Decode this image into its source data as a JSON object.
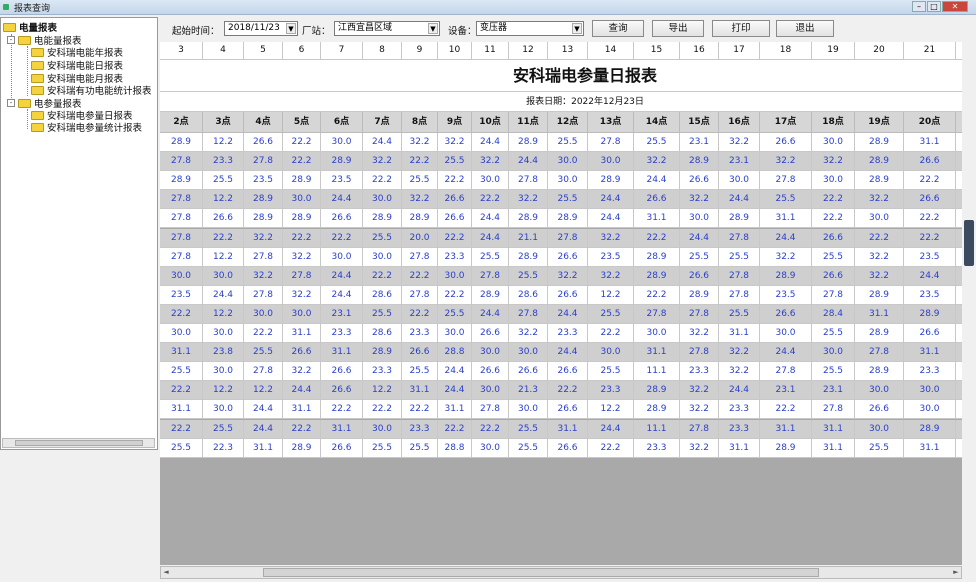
{
  "window": {
    "title": "报表查询"
  },
  "sidebar": {
    "root": "电量报表",
    "groups": [
      {
        "label": "电能量报表",
        "items": [
          "安科瑞电能年报表",
          "安科瑞电能日报表",
          "安科瑞电能月报表",
          "安科瑞有功电能统计报表"
        ]
      },
      {
        "label": "电参量报表",
        "items": [
          "安科瑞电参量日报表",
          "安科瑞电参量统计报表"
        ]
      }
    ]
  },
  "toolbar": {
    "start_time_label": "起始时间：",
    "start_time_value": "2018/11/23",
    "station_label": "厂站：",
    "station_value": "江西宜昌区域",
    "device_label": "设备：",
    "device_value": "变压器",
    "query": "查询",
    "export": "导出",
    "print": "打印",
    "exit": "退出"
  },
  "grid": {
    "column_numbers": [
      "3",
      "4",
      "5",
      "6",
      "7",
      "8",
      "9",
      "10",
      "11",
      "12",
      "13",
      "14",
      "15",
      "16",
      "17",
      "18",
      "19",
      "20",
      "21"
    ],
    "report_title": "安科瑞电参量日报表",
    "report_date": "报表日期：2022年12月23日",
    "hours": [
      "2点",
      "3点",
      "4点",
      "5点",
      "6点",
      "7点",
      "8点",
      "9点",
      "10点",
      "11点",
      "12点",
      "13点",
      "14点",
      "15点",
      "16点",
      "17点",
      "18点",
      "19点",
      "20点"
    ],
    "rows": [
      [
        "28.9",
        "12.2",
        "26.6",
        "22.2",
        "30.0",
        "24.4",
        "32.2",
        "32.2",
        "24.4",
        "28.9",
        "25.5",
        "27.8",
        "25.5",
        "23.1",
        "32.2",
        "26.6",
        "30.0",
        "28.9",
        "31.1"
      ],
      [
        "27.8",
        "23.3",
        "27.8",
        "22.2",
        "28.9",
        "32.2",
        "22.2",
        "25.5",
        "32.2",
        "24.4",
        "30.0",
        "30.0",
        "32.2",
        "28.9",
        "23.1",
        "32.2",
        "32.2",
        "28.9",
        "26.6"
      ],
      [
        "28.9",
        "25.5",
        "23.5",
        "28.9",
        "23.5",
        "22.2",
        "25.5",
        "22.2",
        "30.0",
        "27.8",
        "30.0",
        "28.9",
        "24.4",
        "26.6",
        "30.0",
        "27.8",
        "30.0",
        "28.9",
        "22.2"
      ],
      [
        "27.8",
        "12.2",
        "28.9",
        "30.0",
        "24.4",
        "30.0",
        "32.2",
        "26.6",
        "22.2",
        "32.2",
        "25.5",
        "24.4",
        "26.6",
        "32.2",
        "24.4",
        "25.5",
        "22.2",
        "32.2",
        "26.6"
      ],
      [
        "27.8",
        "26.6",
        "28.9",
        "28.9",
        "26.6",
        "28.9",
        "28.9",
        "26.6",
        "24.4",
        "28.9",
        "28.9",
        "24.4",
        "31.1",
        "30.0",
        "28.9",
        "31.1",
        "22.2",
        "30.0",
        "22.2"
      ],
      [
        "27.8",
        "22.2",
        "32.2",
        "22.2",
        "22.2",
        "25.5",
        "20.0",
        "22.2",
        "24.4",
        "21.1",
        "27.8",
        "32.2",
        "22.2",
        "24.4",
        "27.8",
        "24.4",
        "26.6",
        "22.2",
        "22.2"
      ],
      [
        "27.8",
        "12.2",
        "27.8",
        "32.2",
        "30.0",
        "30.0",
        "27.8",
        "23.3",
        "25.5",
        "28.9",
        "26.6",
        "23.5",
        "28.9",
        "25.5",
        "25.5",
        "32.2",
        "25.5",
        "32.2",
        "23.5"
      ],
      [
        "30.0",
        "30.0",
        "32.2",
        "27.8",
        "24.4",
        "22.2",
        "22.2",
        "30.0",
        "27.8",
        "25.5",
        "32.2",
        "32.2",
        "28.9",
        "26.6",
        "27.8",
        "28.9",
        "26.6",
        "32.2",
        "24.4"
      ],
      [
        "23.5",
        "24.4",
        "27.8",
        "32.2",
        "24.4",
        "28.6",
        "27.8",
        "22.2",
        "28.9",
        "28.6",
        "26.6",
        "12.2",
        "22.2",
        "28.9",
        "27.8",
        "23.5",
        "27.8",
        "28.9",
        "23.5"
      ],
      [
        "22.2",
        "12.2",
        "30.0",
        "30.0",
        "23.1",
        "25.5",
        "22.2",
        "25.5",
        "24.4",
        "27.8",
        "24.4",
        "25.5",
        "27.8",
        "27.8",
        "25.5",
        "26.6",
        "28.4",
        "31.1",
        "28.9"
      ],
      [
        "30.0",
        "30.0",
        "22.2",
        "31.1",
        "23.3",
        "28.6",
        "23.3",
        "30.0",
        "26.6",
        "32.2",
        "23.3",
        "22.2",
        "30.0",
        "32.2",
        "31.1",
        "30.0",
        "25.5",
        "28.9",
        "26.6"
      ],
      [
        "31.1",
        "23.8",
        "25.5",
        "26.6",
        "31.1",
        "28.9",
        "26.6",
        "28.8",
        "30.0",
        "30.0",
        "24.4",
        "30.0",
        "31.1",
        "27.8",
        "32.2",
        "24.4",
        "30.0",
        "27.8",
        "31.1"
      ],
      [
        "25.5",
        "30.0",
        "27.8",
        "32.2",
        "26.6",
        "23.3",
        "25.5",
        "24.4",
        "26.6",
        "26.6",
        "26.6",
        "25.5",
        "11.1",
        "23.3",
        "32.2",
        "27.8",
        "25.5",
        "28.9",
        "23.3"
      ],
      [
        "22.2",
        "12.2",
        "12.2",
        "24.4",
        "26.6",
        "12.2",
        "31.1",
        "24.4",
        "30.0",
        "21.3",
        "22.2",
        "23.3",
        "28.9",
        "32.2",
        "24.4",
        "23.1",
        "23.1",
        "30.0",
        "30.0"
      ],
      [
        "31.1",
        "30.0",
        "24.4",
        "31.1",
        "22.2",
        "22.2",
        "22.2",
        "31.1",
        "27.8",
        "30.0",
        "26.6",
        "12.2",
        "28.9",
        "32.2",
        "23.3",
        "22.2",
        "27.8",
        "26.6",
        "30.0"
      ],
      [
        "22.2",
        "25.5",
        "24.4",
        "22.2",
        "31.1",
        "30.0",
        "23.3",
        "22.2",
        "22.2",
        "25.5",
        "31.1",
        "24.4",
        "11.1",
        "27.8",
        "23.3",
        "31.1",
        "31.1",
        "30.0",
        "28.9"
      ],
      [
        "25.5",
        "22.3",
        "31.1",
        "28.9",
        "26.6",
        "25.5",
        "25.5",
        "28.8",
        "30.0",
        "25.5",
        "26.6",
        "22.2",
        "23.3",
        "32.2",
        "31.1",
        "28.9",
        "31.1",
        "25.5",
        "31.1"
      ]
    ]
  },
  "colors": {
    "value_text": "#2a3fc9",
    "alt_row": "#cfcfcf",
    "header": "#d6d6d6"
  }
}
